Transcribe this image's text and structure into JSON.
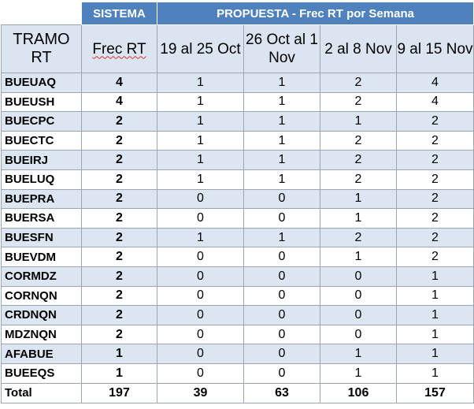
{
  "header_group": {
    "sistema": "SISTEMA",
    "propuesta": "PROPUESTA - Frec RT por Semana"
  },
  "columns": {
    "tramo": "TRAMO RT",
    "frec": "Frec RT",
    "w1": "19 al 25 Oct",
    "w2": "26 Oct al 1 Nov",
    "w3": "2 al 8 Nov",
    "w4": "9 al 15 Nov"
  },
  "rows": [
    {
      "tramo": "BUEUAQ",
      "frec": "4",
      "w1": "1",
      "w2": "1",
      "w3": "2",
      "w4": "4"
    },
    {
      "tramo": "BUEUSH",
      "frec": "4",
      "w1": "1",
      "w2": "1",
      "w3": "2",
      "w4": "4"
    },
    {
      "tramo": "BUECPC",
      "frec": "2",
      "w1": "1",
      "w2": "1",
      "w3": "1",
      "w4": "2"
    },
    {
      "tramo": "BUECTC",
      "frec": "2",
      "w1": "1",
      "w2": "1",
      "w3": "2",
      "w4": "2"
    },
    {
      "tramo": "BUEIRJ",
      "frec": "2",
      "w1": "1",
      "w2": "1",
      "w3": "2",
      "w4": "2"
    },
    {
      "tramo": "BUELUQ",
      "frec": "2",
      "w1": "1",
      "w2": "1",
      "w3": "2",
      "w4": "2"
    },
    {
      "tramo": "BUEPRA",
      "frec": "2",
      "w1": "0",
      "w2": "0",
      "w3": "1",
      "w4": "2"
    },
    {
      "tramo": "BUERSA",
      "frec": "2",
      "w1": "0",
      "w2": "0",
      "w3": "1",
      "w4": "2"
    },
    {
      "tramo": "BUESFN",
      "frec": "2",
      "w1": "1",
      "w2": "1",
      "w3": "2",
      "w4": "2"
    },
    {
      "tramo": "BUEVDM",
      "frec": "2",
      "w1": "0",
      "w2": "0",
      "w3": "1",
      "w4": "2"
    },
    {
      "tramo": "CORMDZ",
      "frec": "2",
      "w1": "0",
      "w2": "0",
      "w3": "0",
      "w4": "1"
    },
    {
      "tramo": "CORNQN",
      "frec": "2",
      "w1": "0",
      "w2": "0",
      "w3": "0",
      "w4": "1"
    },
    {
      "tramo": "CRDNQN",
      "frec": "2",
      "w1": "0",
      "w2": "0",
      "w3": "0",
      "w4": "1"
    },
    {
      "tramo": "MDZNQN",
      "frec": "2",
      "w1": "0",
      "w2": "0",
      "w3": "0",
      "w4": "1"
    },
    {
      "tramo": "AFABUE",
      "frec": "1",
      "w1": "0",
      "w2": "0",
      "w3": "1",
      "w4": "1"
    },
    {
      "tramo": "BUEEQS",
      "frec": "1",
      "w1": "0",
      "w2": "0",
      "w3": "1",
      "w4": "1"
    }
  ],
  "total": {
    "label": "Total",
    "frec": "197",
    "w1": "39",
    "w2": "63",
    "w3": "106",
    "w4": "157"
  },
  "colors": {
    "header_blue": "#4f81bd",
    "band": "#dce6f2",
    "head_bg": "#dbe5f1"
  }
}
